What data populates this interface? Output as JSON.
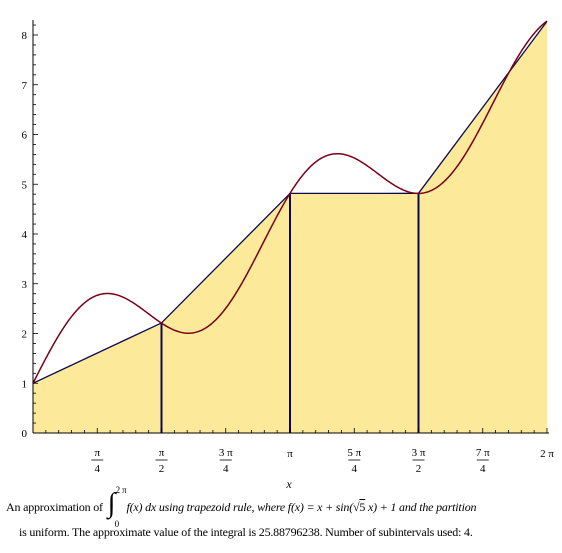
{
  "chart_data": {
    "type": "area",
    "xlabel": "x",
    "xlim": [
      0,
      6.2832
    ],
    "ylim": [
      0,
      8.5
    ],
    "y_ticks": [
      0,
      1,
      2,
      3,
      4,
      5,
      6,
      7,
      8
    ],
    "x_ticks": [
      {
        "value": 0.7854,
        "num": "π",
        "den": "4"
      },
      {
        "value": 1.5708,
        "num": "π",
        "den": "2"
      },
      {
        "value": 2.3562,
        "num": "3 π",
        "den": "4"
      },
      {
        "value": 3.1416,
        "label": "π"
      },
      {
        "value": 3.927,
        "num": "5 π",
        "den": "4"
      },
      {
        "value": 4.7124,
        "num": "3 π",
        "den": "2"
      },
      {
        "value": 5.4978,
        "num": "7 π",
        "den": "4"
      },
      {
        "value": 6.2832,
        "label": "2 π"
      }
    ],
    "function": "x + sin(sqrt(5) x) + 1",
    "function_domain": [
      0,
      6.2832
    ],
    "trapezoid_nodes": [
      {
        "x": 0,
        "y": 1.0
      },
      {
        "x": 1.5708,
        "y": 2.2127
      },
      {
        "x": 3.1416,
        "y": 4.816
      },
      {
        "x": 4.7124,
        "y": 4.8176
      },
      {
        "x": 6.2832,
        "y": 8.2743
      }
    ],
    "colors": {
      "fill": "#fce99a",
      "curve": "#7a0018",
      "trapezoid_edge": "#0a0a50",
      "axis": "#000000"
    }
  },
  "caption": {
    "l1_a": "An approximation of",
    "int_upper": "2 π",
    "int_lower": "0",
    "l1_b": "f(x)  dx using trapezoid rule, where f(x) = x + sin(",
    "sqrt_arg": "5",
    "l1_c": "x) + 1 and the partition",
    "line2": "is uniform.  The approximate value of the integral is 25.88796238.  Number of subintervals used: 4."
  }
}
